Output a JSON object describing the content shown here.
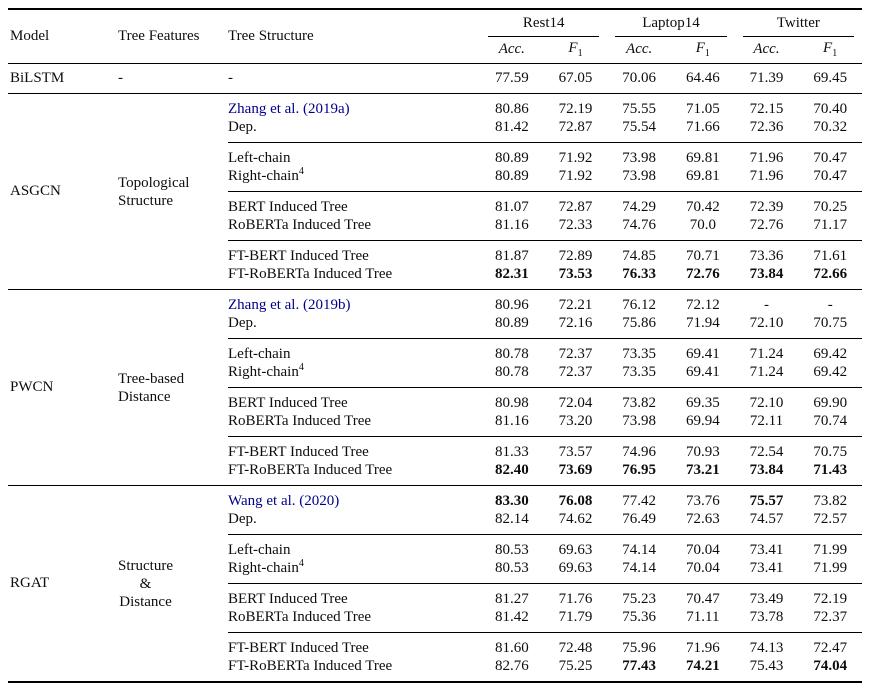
{
  "colors": {
    "citation": "#00008B",
    "text": "#0d0d0d",
    "rule": "#000000",
    "background": "#ffffff"
  },
  "header": {
    "model": "Model",
    "tree_features": "Tree Features",
    "tree_structure": "Tree Structure",
    "groups": [
      {
        "label": "Rest14"
      },
      {
        "label": "Laptop14"
      },
      {
        "label": "Twitter"
      }
    ],
    "acc_label": "Acc.",
    "f1_base": "F",
    "f1_sub": "1"
  },
  "bilstm": {
    "model": "BiLSTM",
    "features": "-",
    "structure": "-",
    "values": [
      "77.59",
      "67.05",
      "70.06",
      "64.46",
      "71.39",
      "69.45"
    ],
    "bold": [
      false,
      false,
      false,
      false,
      false,
      false
    ]
  },
  "sections": [
    {
      "model": "ASGCN",
      "features_lines": [
        "Topological",
        "Structure"
      ],
      "features_align": "left",
      "groups": [
        {
          "rows": [
            {
              "structure": "Zhang et al. (2019a)",
              "citation": true,
              "sup": "",
              "values": [
                "80.86",
                "72.19",
                "75.55",
                "71.05",
                "72.15",
                "70.40"
              ],
              "bold": [
                false,
                false,
                false,
                false,
                false,
                false
              ]
            },
            {
              "structure": "Dep.",
              "citation": false,
              "sup": "",
              "values": [
                "81.42",
                "72.87",
                "75.54",
                "71.66",
                "72.36",
                "70.32"
              ],
              "bold": [
                false,
                false,
                false,
                false,
                false,
                false
              ]
            }
          ]
        },
        {
          "rows": [
            {
              "structure": "Left-chain",
              "citation": false,
              "sup": "",
              "values": [
                "80.89",
                "71.92",
                "73.98",
                "69.81",
                "71.96",
                "70.47"
              ],
              "bold": [
                false,
                false,
                false,
                false,
                false,
                false
              ]
            },
            {
              "structure": "Right-chain",
              "citation": false,
              "sup": "4",
              "values": [
                "80.89",
                "71.92",
                "73.98",
                "69.81",
                "71.96",
                "70.47"
              ],
              "bold": [
                false,
                false,
                false,
                false,
                false,
                false
              ]
            }
          ]
        },
        {
          "rows": [
            {
              "structure": "BERT Induced Tree",
              "citation": false,
              "sup": "",
              "values": [
                "81.07",
                "72.87",
                "74.29",
                "70.42",
                "72.39",
                "70.25"
              ],
              "bold": [
                false,
                false,
                false,
                false,
                false,
                false
              ]
            },
            {
              "structure": "RoBERTa Induced Tree",
              "citation": false,
              "sup": "",
              "values": [
                "81.16",
                "72.33",
                "74.76",
                "70.0",
                "72.76",
                "71.17"
              ],
              "bold": [
                false,
                false,
                false,
                false,
                false,
                false
              ]
            }
          ]
        },
        {
          "rows": [
            {
              "structure": "FT-BERT Induced Tree",
              "citation": false,
              "sup": "",
              "values": [
                "81.87",
                "72.89",
                "74.85",
                "70.71",
                "73.36",
                "71.61"
              ],
              "bold": [
                false,
                false,
                false,
                false,
                false,
                false
              ]
            },
            {
              "structure": "FT-RoBERTa Induced Tree",
              "citation": false,
              "sup": "",
              "values": [
                "82.31",
                "73.53",
                "76.33",
                "72.76",
                "73.84",
                "72.66"
              ],
              "bold": [
                true,
                true,
                true,
                true,
                true,
                true
              ]
            }
          ]
        }
      ]
    },
    {
      "model": "PWCN",
      "features_lines": [
        "Tree-based",
        "Distance"
      ],
      "features_align": "left",
      "groups": [
        {
          "rows": [
            {
              "structure": "Zhang et al. (2019b)",
              "citation": true,
              "sup": "",
              "values": [
                "80.96",
                "72.21",
                "76.12",
                "72.12",
                "-",
                "-"
              ],
              "bold": [
                false,
                false,
                false,
                false,
                false,
                false
              ]
            },
            {
              "structure": "Dep.",
              "citation": false,
              "sup": "",
              "values": [
                "80.89",
                "72.16",
                "75.86",
                "71.94",
                "72.10",
                "70.75"
              ],
              "bold": [
                false,
                false,
                false,
                false,
                false,
                false
              ]
            }
          ]
        },
        {
          "rows": [
            {
              "structure": "Left-chain",
              "citation": false,
              "sup": "",
              "values": [
                "80.78",
                "72.37",
                "73.35",
                "69.41",
                "71.24",
                "69.42"
              ],
              "bold": [
                false,
                false,
                false,
                false,
                false,
                false
              ]
            },
            {
              "structure": "Right-chain",
              "citation": false,
              "sup": "4",
              "values": [
                "80.78",
                "72.37",
                "73.35",
                "69.41",
                "71.24",
                "69.42"
              ],
              "bold": [
                false,
                false,
                false,
                false,
                false,
                false
              ]
            }
          ]
        },
        {
          "rows": [
            {
              "structure": "BERT Induced Tree",
              "citation": false,
              "sup": "",
              "values": [
                "80.98",
                "72.04",
                "73.82",
                "69.35",
                "72.10",
                "69.90"
              ],
              "bold": [
                false,
                false,
                false,
                false,
                false,
                false
              ]
            },
            {
              "structure": "RoBERTa Induced Tree",
              "citation": false,
              "sup": "",
              "values": [
                "81.16",
                "73.20",
                "73.98",
                "69.94",
                "72.11",
                "70.74"
              ],
              "bold": [
                false,
                false,
                false,
                false,
                false,
                false
              ]
            }
          ]
        },
        {
          "rows": [
            {
              "structure": "FT-BERT Induced Tree",
              "citation": false,
              "sup": "",
              "values": [
                "81.33",
                "73.57",
                "74.96",
                "70.93",
                "72.54",
                "70.75"
              ],
              "bold": [
                false,
                false,
                false,
                false,
                false,
                false
              ]
            },
            {
              "structure": "FT-RoBERTa Induced Tree",
              "citation": false,
              "sup": "",
              "values": [
                "82.40",
                "73.69",
                "76.95",
                "73.21",
                "73.84",
                "71.43"
              ],
              "bold": [
                true,
                true,
                true,
                true,
                true,
                true
              ]
            }
          ]
        }
      ]
    },
    {
      "model": "RGAT",
      "features_lines": [
        "Structure",
        "&",
        "Distance"
      ],
      "features_align": "center",
      "groups": [
        {
          "rows": [
            {
              "structure": "Wang et al. (2020)",
              "citation": true,
              "sup": "",
              "values": [
                "83.30",
                "76.08",
                "77.42",
                "73.76",
                "75.57",
                "73.82"
              ],
              "bold": [
                true,
                true,
                false,
                false,
                true,
                false
              ]
            },
            {
              "structure": "Dep.",
              "citation": false,
              "sup": "",
              "values": [
                "82.14",
                "74.62",
                "76.49",
                "72.63",
                "74.57",
                "72.57"
              ],
              "bold": [
                false,
                false,
                false,
                false,
                false,
                false
              ]
            }
          ]
        },
        {
          "rows": [
            {
              "structure": "Left-chain",
              "citation": false,
              "sup": "",
              "values": [
                "80.53",
                "69.63",
                "74.14",
                "70.04",
                "73.41",
                "71.99"
              ],
              "bold": [
                false,
                false,
                false,
                false,
                false,
                false
              ]
            },
            {
              "structure": "Right-chain",
              "citation": false,
              "sup": "4",
              "values": [
                "80.53",
                "69.63",
                "74.14",
                "70.04",
                "73.41",
                "71.99"
              ],
              "bold": [
                false,
                false,
                false,
                false,
                false,
                false
              ]
            }
          ]
        },
        {
          "rows": [
            {
              "structure": "BERT Induced Tree",
              "citation": false,
              "sup": "",
              "values": [
                "81.27",
                "71.76",
                "75.23",
                "70.47",
                "73.49",
                "72.19"
              ],
              "bold": [
                false,
                false,
                false,
                false,
                false,
                false
              ]
            },
            {
              "structure": "RoBERTa Induced Tree",
              "citation": false,
              "sup": "",
              "values": [
                "81.42",
                "71.79",
                "75.36",
                "71.11",
                "73.78",
                "72.37"
              ],
              "bold": [
                false,
                false,
                false,
                false,
                false,
                false
              ]
            }
          ]
        },
        {
          "rows": [
            {
              "structure": "FT-BERT Induced Tree",
              "citation": false,
              "sup": "",
              "values": [
                "81.60",
                "72.48",
                "75.96",
                "71.96",
                "74.13",
                "72.47"
              ],
              "bold": [
                false,
                false,
                false,
                false,
                false,
                false
              ]
            },
            {
              "structure": "FT-RoBERTa Induced Tree",
              "citation": false,
              "sup": "",
              "values": [
                "82.76",
                "75.25",
                "77.43",
                "74.21",
                "75.43",
                "74.04"
              ],
              "bold": [
                false,
                false,
                true,
                true,
                false,
                true
              ]
            }
          ]
        }
      ]
    }
  ]
}
